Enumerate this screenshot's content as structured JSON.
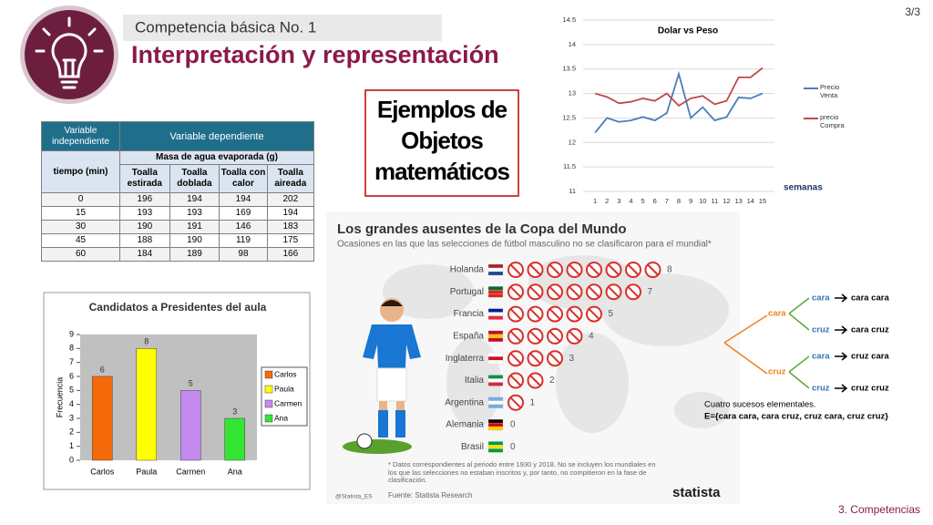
{
  "page_number": "3/3",
  "footer": "3. Competencias",
  "header": {
    "subtitle": "Competencia básica No. 1",
    "title": "Interpretación y representación"
  },
  "callout": "Ejemplos de Objetos matemáticos",
  "table": {
    "header": {
      "independent": "Variable independiente",
      "dependent": "Variable dependiente",
      "time": "tiempo (min)",
      "measure": "Masa de agua evaporada (g)",
      "columns": [
        "Toalla estirada",
        "Toalla doblada",
        "Toalla con calor",
        "Toalla aireada"
      ]
    },
    "rows": [
      [
        0,
        196,
        194,
        194,
        202
      ],
      [
        15,
        193,
        193,
        169,
        194
      ],
      [
        30,
        190,
        191,
        146,
        183
      ],
      [
        45,
        188,
        190,
        119,
        175
      ],
      [
        60,
        184,
        189,
        98,
        166
      ]
    ]
  },
  "chart_data": [
    {
      "type": "line",
      "title": "Dolar vs Peso",
      "x_label": "semanas",
      "x": [
        1,
        2,
        3,
        4,
        5,
        6,
        7,
        8,
        9,
        10,
        11,
        12,
        13,
        14,
        15
      ],
      "xlim": [
        0,
        16
      ],
      "ylim": [
        11,
        14.5
      ],
      "yticks": [
        11,
        11.5,
        12,
        12.5,
        13,
        13.5,
        14,
        14.5
      ],
      "grid": true,
      "legend": "right",
      "series": [
        {
          "name": "Precio Venta",
          "color": "#4a7ebb",
          "values": [
            12.2,
            12.5,
            12.42,
            12.45,
            12.52,
            12.45,
            12.6,
            13.4,
            12.5,
            12.72,
            12.45,
            12.52,
            12.92,
            12.9,
            13.0
          ]
        },
        {
          "name": "precio Compra",
          "color": "#be4b48",
          "values": [
            13.0,
            12.93,
            12.8,
            12.83,
            12.9,
            12.85,
            13.0,
            12.75,
            12.9,
            12.95,
            12.78,
            12.85,
            13.33,
            13.33,
            13.52
          ]
        }
      ]
    },
    {
      "type": "bar",
      "title": "Candidatos a Presidentes del aula",
      "y_label": "Frecuencia",
      "categories": [
        "Carlos",
        "Paula",
        "Carmen",
        "Ana"
      ],
      "values": [
        6,
        8,
        5,
        3
      ],
      "colors": [
        "#f46a0a",
        "#ffff00",
        "#c58bf0",
        "#33e633"
      ],
      "ylim": [
        0,
        9
      ],
      "yticks": [
        0,
        1,
        2,
        3,
        4,
        5,
        6,
        7,
        8,
        9
      ],
      "grid": false,
      "legend": "right"
    },
    {
      "type": "pictogram",
      "title": "Los grandes ausentes de la Copa del Mundo",
      "subtitle": "Ocasiones en las que las selecciones de fútbol masculino no se clasificaron para el mundial*",
      "categories": [
        "Holanda",
        "Portugal",
        "Francia",
        "España",
        "Inglaterra",
        "Italia",
        "Argentina",
        "Alemania",
        "Brasil"
      ],
      "values": [
        8,
        7,
        5,
        4,
        3,
        2,
        1,
        0,
        0
      ],
      "color": "#d9302c",
      "footnote": "* Datos correspondientes al periodo entre 1930 y 2018. No se incluyen los mundiales en los que las selecciones no estaban inscritos y, por tanto, no compitieron en la fase de clasificación.",
      "source": "Fuente: Statista Research",
      "handle": "@Statista_ES",
      "brand": "statista"
    }
  ],
  "tree": {
    "branches": [
      {
        "label": "cara",
        "children": [
          {
            "label": "cara",
            "result": "cara cara"
          },
          {
            "label": "cruz",
            "result": "cara cruz"
          }
        ]
      },
      {
        "label": "cruz",
        "children": [
          {
            "label": "cara",
            "result": "cruz cara"
          },
          {
            "label": "cruz",
            "result": "cruz cruz"
          }
        ]
      }
    ],
    "note": "Cuatro sucesos elementales.",
    "sample_space": "E={cara cara, cara cruz, cruz cara, cruz cruz}"
  }
}
